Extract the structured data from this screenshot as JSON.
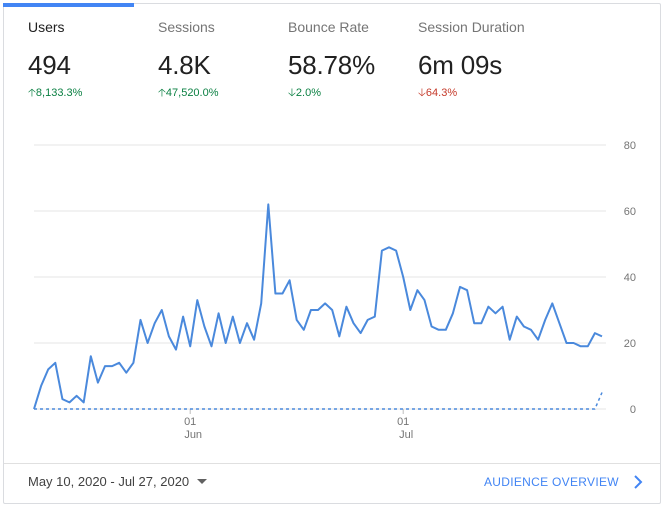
{
  "metrics": [
    {
      "label": "Users",
      "value": "494",
      "change": "8,133.3%",
      "direction": "up",
      "color": "#0b8043"
    },
    {
      "label": "Sessions",
      "value": "4.8K",
      "change": "47,520.0%",
      "direction": "up",
      "color": "#0b8043"
    },
    {
      "label": "Bounce Rate",
      "value": "58.78%",
      "change": "2.0%",
      "direction": "down",
      "color": "#0b8043"
    },
    {
      "label": "Session Duration",
      "value": "6m 09s",
      "change": "64.3%",
      "direction": "down",
      "color": "#c53929"
    }
  ],
  "chart_data": {
    "type": "line",
    "ylim": [
      0,
      80
    ],
    "yticks": [
      "80",
      "60",
      "40",
      "20",
      "0"
    ],
    "xtick_labels": [
      {
        "day": "01",
        "month": "Jun"
      },
      {
        "day": "01",
        "month": "Jul"
      }
    ],
    "grid": true,
    "series": [
      {
        "values": [
          0,
          7,
          12,
          14,
          3,
          2,
          4,
          2,
          16,
          8,
          13,
          13,
          14,
          11,
          14,
          27,
          20,
          26,
          30,
          22,
          18,
          28,
          19,
          33,
          25,
          19,
          29,
          20,
          28,
          20,
          26,
          21,
          32,
          62,
          35,
          35,
          39,
          27,
          24,
          30,
          30,
          32,
          30,
          22,
          31,
          26,
          23,
          27,
          28,
          48,
          49,
          48,
          40,
          30,
          36,
          33,
          25,
          24,
          24,
          29,
          37,
          36,
          26,
          26,
          31,
          29,
          31,
          21,
          28,
          25,
          24,
          21,
          27,
          32,
          26,
          20,
          20,
          19,
          19,
          23,
          22
        ]
      },
      {
        "style": "dashed",
        "values": [
          0,
          0,
          0,
          0,
          0,
          0,
          0,
          0,
          0,
          0,
          0,
          0,
          0,
          0,
          0,
          0,
          0,
          0,
          0,
          0,
          0,
          0,
          0,
          0,
          0,
          0,
          0,
          0,
          0,
          0,
          0,
          0,
          0,
          0,
          0,
          0,
          0,
          0,
          0,
          0,
          0,
          0,
          0,
          0,
          0,
          0,
          0,
          0,
          0,
          0,
          0,
          0,
          0,
          0,
          0,
          0,
          0,
          0,
          0,
          0,
          0,
          0,
          0,
          0,
          0,
          0,
          0,
          0,
          0,
          0,
          0,
          0,
          0,
          0,
          0,
          0,
          0,
          0,
          0,
          0,
          5
        ]
      }
    ],
    "line_color": "#4a89dc"
  },
  "footer": {
    "date_range": "May 10, 2020 - Jul 27, 2020",
    "link_label": "AUDIENCE OVERVIEW"
  },
  "icons": {
    "up": "arrow-up-icon",
    "down": "arrow-down-icon",
    "dropdown": "caret-down-icon",
    "link": "chevron-right-icon"
  }
}
